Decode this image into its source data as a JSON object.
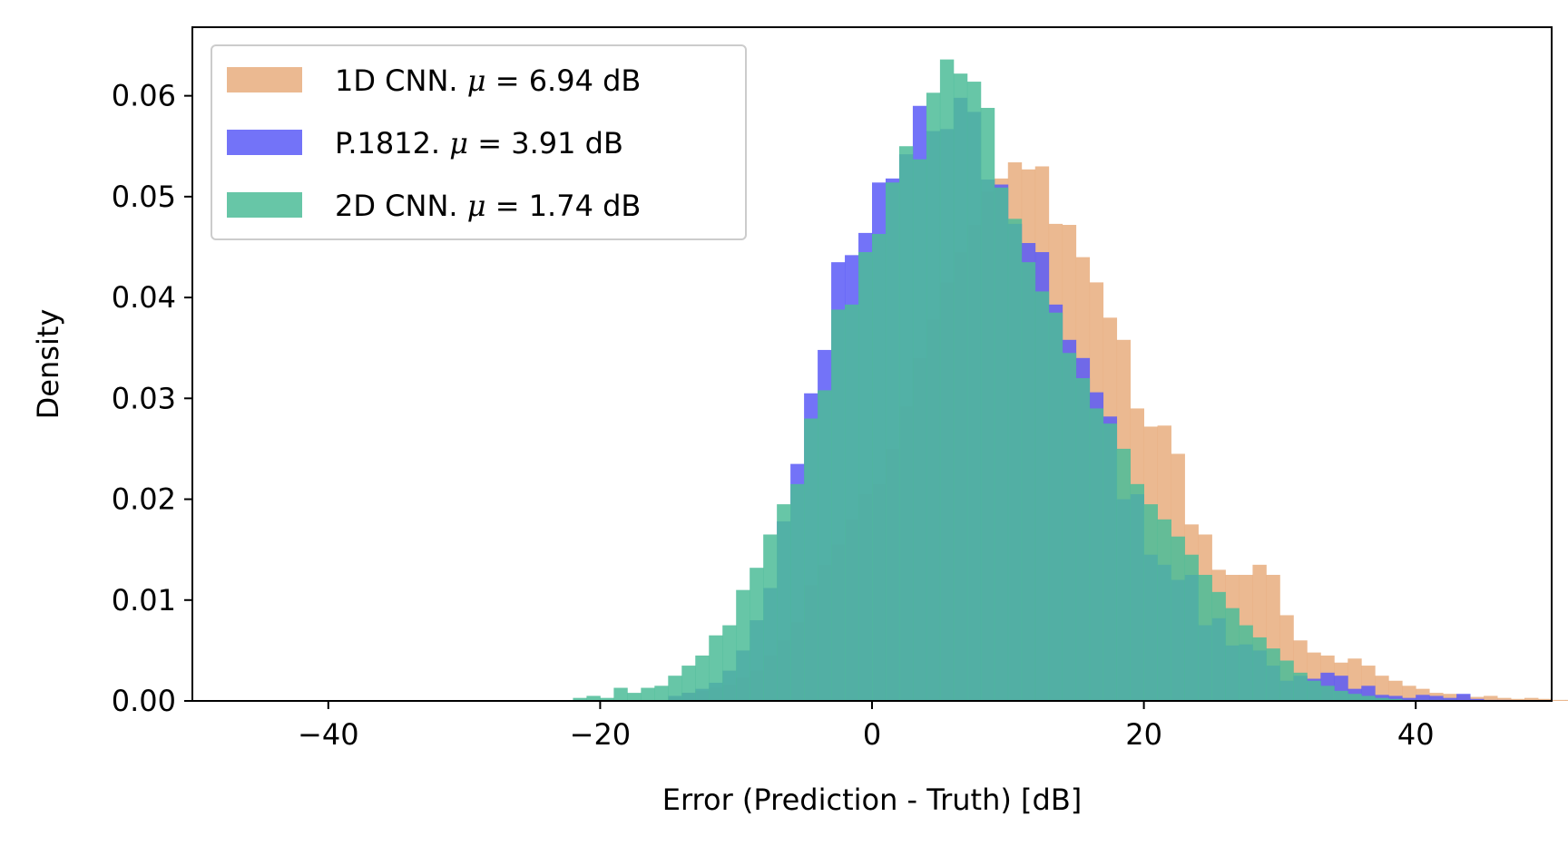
{
  "chart_data": {
    "type": "bar",
    "subtype": "overlaid-histogram",
    "xlabel": "Error (Prediction - Truth) [dB]",
    "ylabel": "Density",
    "xlim": [
      -50,
      50
    ],
    "ylim": [
      0,
      0.0668
    ],
    "xticks": [
      -40,
      -20,
      0,
      20,
      40
    ],
    "xtick_labels": [
      "−40",
      "−20",
      "0",
      "20",
      "40"
    ],
    "yticks": [
      0.0,
      0.01,
      0.02,
      0.03,
      0.04,
      0.05,
      0.06
    ],
    "ytick_labels": [
      "0.00",
      "0.01",
      "0.02",
      "0.03",
      "0.04",
      "0.05",
      "0.06"
    ],
    "grid": false,
    "legend_position": "upper-left",
    "bin_width": 1.0,
    "series": [
      {
        "name": "1D CNN. μ = 6.94 dB",
        "label_prefix": "1D CNN.",
        "label_mu": "μ",
        "label_value": " = 6.94 dB",
        "color": "#e8ad7e",
        "start": -15,
        "values": [
          0.0004,
          0.0008,
          0.001,
          0.0013,
          0.0016,
          0.0023,
          0.003,
          0.0045,
          0.006,
          0.0078,
          0.0115,
          0.0135,
          0.0155,
          0.018,
          0.0205,
          0.0215,
          0.025,
          0.0292,
          0.034,
          0.0378,
          0.0415,
          0.0445,
          0.0472,
          0.0505,
          0.0518,
          0.0534,
          0.0527,
          0.053,
          0.0473,
          0.0472,
          0.044,
          0.0415,
          0.038,
          0.0358,
          0.029,
          0.0272,
          0.0273,
          0.0245,
          0.0175,
          0.0165,
          0.013,
          0.0125,
          0.0125,
          0.0135,
          0.0125,
          0.0085,
          0.006,
          0.0048,
          0.0045,
          0.0038,
          0.0042,
          0.0035,
          0.0025,
          0.002,
          0.0015,
          0.0012,
          0.0008,
          0.0007,
          0.0006,
          0.0004,
          0.0005,
          0.0003,
          0.0002,
          0.0003,
          0.0002,
          0.0001,
          0.0001,
          0.0001,
          0.0001
        ]
      },
      {
        "name": "P.1812. μ = 3.91 dB",
        "label_prefix": "P.1812.",
        "label_mu": "μ",
        "label_value": " = 3.91 dB",
        "color": "#5b5bf7",
        "start": -15,
        "values": [
          0.0005,
          0.0008,
          0.0012,
          0.0018,
          0.003,
          0.005,
          0.008,
          0.0112,
          0.0178,
          0.0235,
          0.0305,
          0.0348,
          0.0435,
          0.0442,
          0.0464,
          0.0514,
          0.0518,
          0.0542,
          0.059,
          0.0565,
          0.0567,
          0.0598,
          0.0584,
          0.0517,
          0.0512,
          0.0473,
          0.0454,
          0.0445,
          0.0393,
          0.0358,
          0.034,
          0.0306,
          0.0282,
          0.02,
          0.0205,
          0.0145,
          0.0135,
          0.012,
          0.0125,
          0.0075,
          0.0082,
          0.0055,
          0.0056,
          0.005,
          0.0035,
          0.002,
          0.0025,
          0.0022,
          0.0028,
          0.0025,
          0.0012,
          0.0015,
          0.0006,
          0.0005,
          0.0003,
          0.0006,
          0.0005,
          0.0003,
          0.0007,
          0.0002,
          0.0001,
          0.0001
        ]
      },
      {
        "name": "2D CNN. μ = 1.74 dB",
        "label_prefix": "2D CNN.",
        "label_mu": "μ",
        "label_value": " = 1.74 dB",
        "color": "#4cbc98",
        "start": -22,
        "values": [
          0.0003,
          0.0005,
          0.0003,
          0.0013,
          0.0008,
          0.0013,
          0.0015,
          0.0025,
          0.0035,
          0.0045,
          0.0065,
          0.0075,
          0.011,
          0.0132,
          0.0165,
          0.0195,
          0.0215,
          0.028,
          0.0308,
          0.0388,
          0.0393,
          0.0445,
          0.0463,
          0.0514,
          0.055,
          0.0537,
          0.0603,
          0.0636,
          0.0622,
          0.0614,
          0.0588,
          0.0509,
          0.0478,
          0.0435,
          0.0406,
          0.0385,
          0.0345,
          0.032,
          0.029,
          0.0275,
          0.025,
          0.0215,
          0.0195,
          0.018,
          0.0163,
          0.0145,
          0.0125,
          0.0108,
          0.0092,
          0.0075,
          0.0063,
          0.0052,
          0.004,
          0.0028,
          0.002,
          0.0015,
          0.001,
          0.0007,
          0.0005,
          0.0003,
          0.0002,
          0.0001,
          0.0001,
          0.0001,
          0.0001
        ]
      }
    ]
  }
}
